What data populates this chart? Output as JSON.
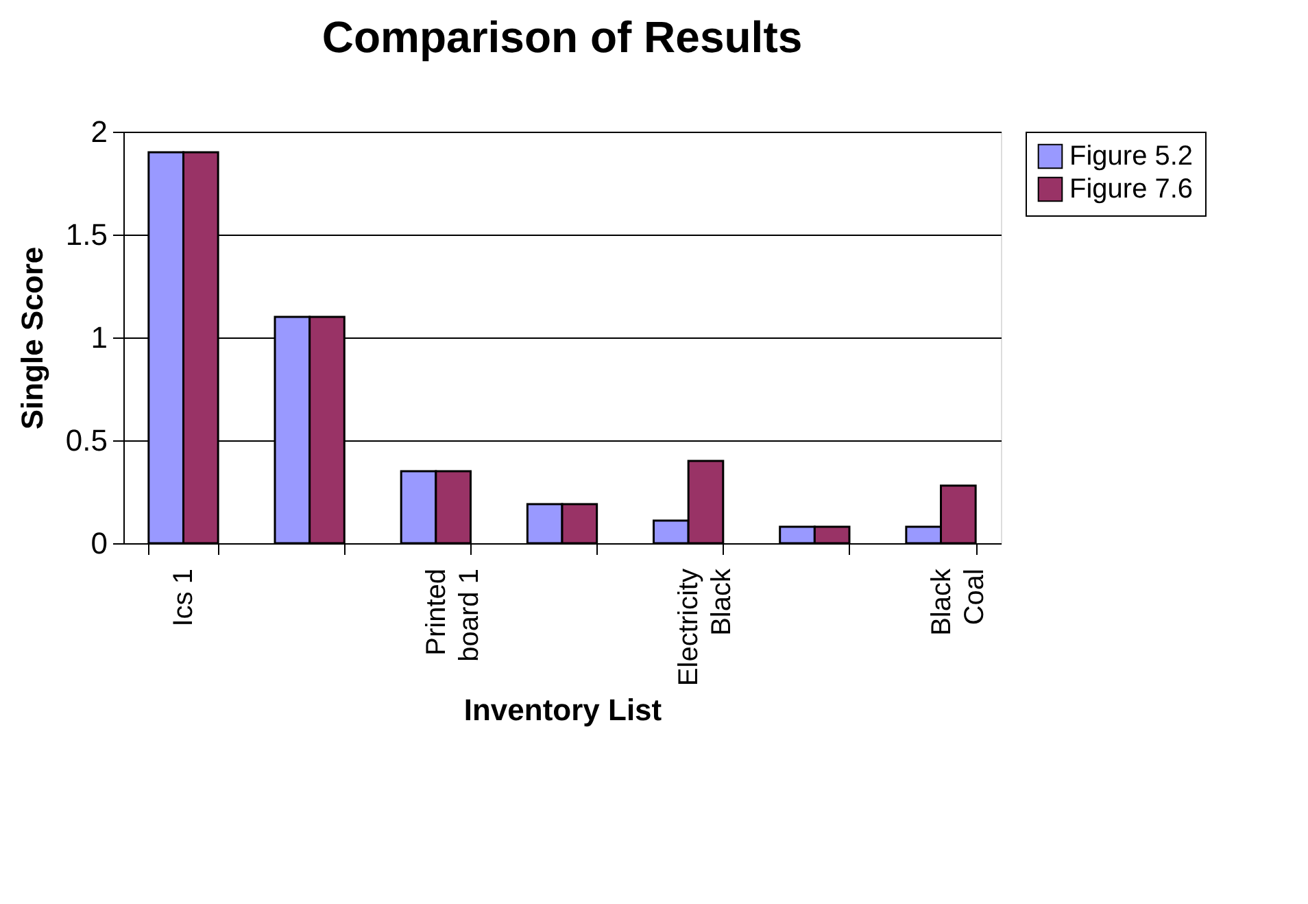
{
  "chart_data": {
    "type": "bar",
    "title": "Comparison of Results",
    "xlabel": "Inventory List",
    "ylabel": "Single Score",
    "categories": [
      "Ics 1",
      null,
      "Printed board 1",
      null,
      "Electricity Black",
      null,
      "Black Coal"
    ],
    "series": [
      {
        "name": "Figure 5.2",
        "color": "#9999ff",
        "values": [
          1.9,
          1.1,
          0.35,
          0.19,
          0.11,
          0.08,
          0.08
        ]
      },
      {
        "name": "Figure 7.6",
        "color": "#993366",
        "values": [
          1.9,
          1.1,
          0.35,
          0.19,
          0.4,
          0.08,
          0.28
        ]
      }
    ],
    "ylim": [
      0,
      2
    ],
    "yticks": [
      0,
      0.5,
      1,
      1.5,
      2
    ],
    "grid": "y",
    "legend": "right"
  }
}
